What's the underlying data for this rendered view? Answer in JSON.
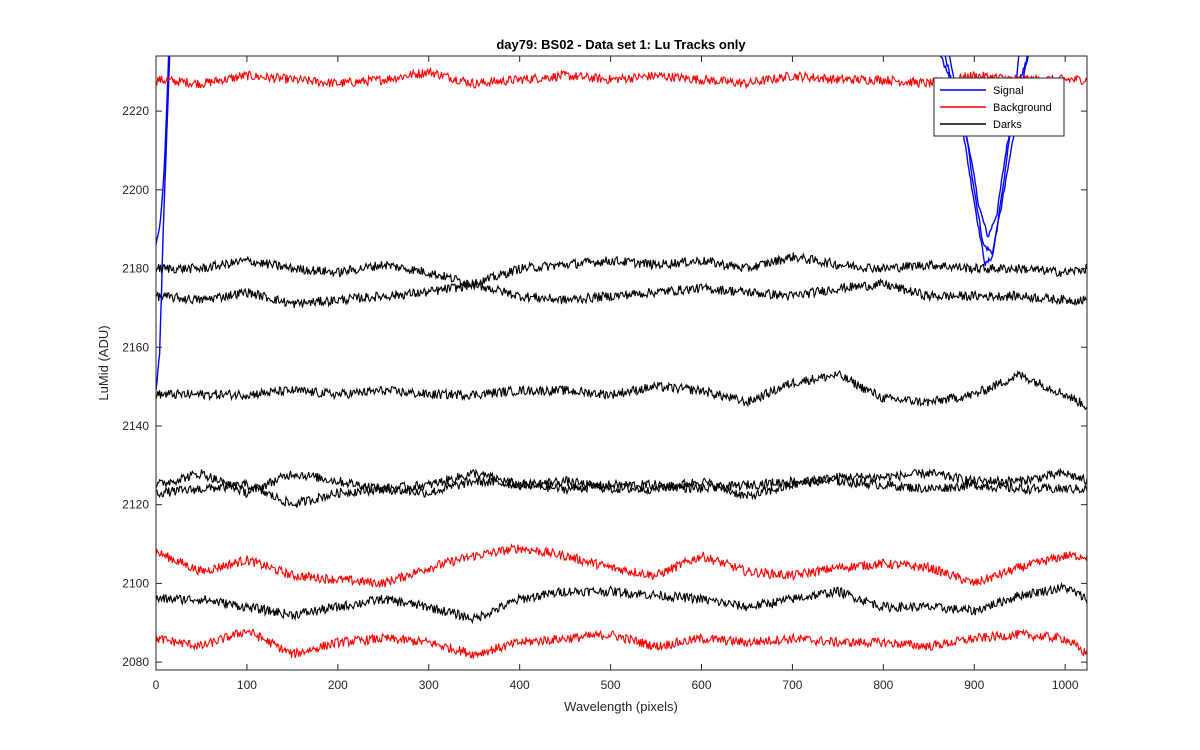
{
  "chart_data": {
    "type": "line",
    "title": "day79: BS02 - Data set 1: Lu Tracks only",
    "xlabel": "Wavelength (pixels)",
    "ylabel": "LuMid (ADU)",
    "xlim": [
      0,
      1024
    ],
    "ylim": [
      2078,
      2234
    ],
    "xticks": [
      0,
      100,
      200,
      300,
      400,
      500,
      600,
      700,
      800,
      900,
      1000
    ],
    "yticks": [
      2080,
      2100,
      2120,
      2140,
      2160,
      2180,
      2200,
      2220
    ],
    "grid": false,
    "legend_position": "top-right",
    "legend": [
      {
        "label": "Signal",
        "color": "#0000ff"
      },
      {
        "label": "Background",
        "color": "#ff0000"
      },
      {
        "label": "Darks",
        "color": "#000000"
      }
    ],
    "series": [
      {
        "group": "Signal",
        "color": "#0000ff",
        "x": [
          0,
          4,
          8,
          12,
          16,
          20
        ],
        "y": [
          2149,
          2158,
          2190,
          2215,
          2240,
          2260
        ]
      },
      {
        "group": "Signal",
        "color": "#0000ff",
        "x": [
          0,
          5,
          9,
          13,
          17
        ],
        "y": [
          2186,
          2192,
          2205,
          2228,
          2255
        ]
      },
      {
        "group": "Signal",
        "color": "#0000ff",
        "x": [
          820,
          860,
          880,
          895,
          905,
          915,
          925,
          935,
          950,
          970,
          985
        ],
        "y": [
          2260,
          2236,
          2224,
          2210,
          2196,
          2188,
          2194,
          2210,
          2228,
          2240,
          2260
        ]
      },
      {
        "group": "Signal",
        "color": "#0000ff",
        "x": [
          840,
          870,
          890,
          900,
          910,
          920,
          930,
          945,
          960,
          975
        ],
        "y": [
          2260,
          2232,
          2216,
          2200,
          2186,
          2184,
          2196,
          2216,
          2236,
          2260
        ]
      },
      {
        "group": "Signal",
        "color": "#0000ff",
        "x": [
          850,
          880,
          895,
          905,
          912,
          920,
          930,
          945,
          960
        ],
        "y": [
          2260,
          2226,
          2204,
          2190,
          2181,
          2183,
          2198,
          2224,
          2260
        ]
      },
      {
        "group": "Background",
        "color": "#ff0000",
        "x": [
          0,
          50,
          100,
          150,
          200,
          250,
          300,
          350,
          400,
          450,
          500,
          550,
          600,
          650,
          700,
          750,
          800,
          850,
          900,
          950,
          1000,
          1024
        ],
        "y": [
          2228,
          2227,
          2229,
          2228,
          2227,
          2228,
          2230,
          2227,
          2228,
          2229,
          2228,
          2229,
          2228,
          2227,
          2229,
          2228,
          2228,
          2227,
          2229,
          2228,
          2228,
          2228
        ]
      },
      {
        "group": "Background",
        "color": "#ff0000",
        "x": [
          0,
          50,
          100,
          150,
          200,
          250,
          300,
          350,
          400,
          450,
          500,
          550,
          600,
          650,
          700,
          750,
          800,
          850,
          900,
          950,
          1000,
          1024
        ],
        "y": [
          2108,
          2103,
          2106,
          2102,
          2101,
          2100,
          2104,
          2107,
          2109,
          2107,
          2104,
          2102,
          2107,
          2103,
          2102,
          2104,
          2105,
          2104,
          2100,
          2104,
          2107,
          2107
        ]
      },
      {
        "group": "Background",
        "color": "#ff0000",
        "x": [
          0,
          50,
          100,
          150,
          200,
          250,
          300,
          350,
          400,
          450,
          500,
          550,
          600,
          650,
          700,
          750,
          800,
          850,
          900,
          950,
          1000,
          1024
        ],
        "y": [
          2086,
          2084,
          2088,
          2082,
          2085,
          2086,
          2085,
          2082,
          2085,
          2086,
          2087,
          2084,
          2086,
          2085,
          2086,
          2085,
          2085,
          2084,
          2086,
          2087,
          2086,
          2082
        ]
      },
      {
        "group": "Darks",
        "color": "#000000",
        "x": [
          0,
          50,
          100,
          150,
          200,
          250,
          300,
          350,
          400,
          450,
          500,
          550,
          600,
          650,
          700,
          750,
          800,
          850,
          900,
          950,
          1000,
          1024
        ],
        "y": [
          2180,
          2180,
          2182,
          2180,
          2179,
          2181,
          2179,
          2176,
          2180,
          2181,
          2182,
          2181,
          2182,
          2180,
          2183,
          2181,
          2180,
          2181,
          2180,
          2180,
          2179,
          2180
        ]
      },
      {
        "group": "Darks",
        "color": "#000000",
        "x": [
          0,
          50,
          100,
          150,
          200,
          250,
          300,
          350,
          400,
          450,
          500,
          550,
          600,
          650,
          700,
          750,
          800,
          850,
          900,
          950,
          1000,
          1024
        ],
        "y": [
          2173,
          2172,
          2174,
          2171,
          2172,
          2173,
          2174,
          2176,
          2173,
          2172,
          2173,
          2174,
          2175,
          2174,
          2173,
          2175,
          2176,
          2173,
          2173,
          2173,
          2172,
          2172
        ]
      },
      {
        "group": "Darks",
        "color": "#000000",
        "x": [
          0,
          50,
          100,
          150,
          200,
          250,
          300,
          350,
          400,
          450,
          500,
          550,
          600,
          650,
          700,
          750,
          800,
          850,
          900,
          950,
          1000,
          1024
        ],
        "y": [
          2148,
          2148,
          2148,
          2149,
          2148,
          2149,
          2148,
          2148,
          2149,
          2149,
          2148,
          2150,
          2149,
          2146,
          2151,
          2153,
          2147,
          2146,
          2148,
          2153,
          2148,
          2145
        ]
      },
      {
        "group": "Darks",
        "color": "#000000",
        "x": [
          0,
          50,
          100,
          150,
          200,
          250,
          300,
          350,
          400,
          450,
          500,
          550,
          600,
          650,
          700,
          750,
          800,
          850,
          900,
          950,
          1000,
          1024
        ],
        "y": [
          2125,
          2128,
          2123,
          2128,
          2126,
          2124,
          2123,
          2126,
          2125,
          2126,
          2124,
          2124,
          2126,
          2122,
          2125,
          2127,
          2127,
          2128,
          2126,
          2126,
          2128,
          2126
        ]
      },
      {
        "group": "Darks",
        "color": "#000000",
        "x": [
          0,
          50,
          100,
          150,
          200,
          250,
          300,
          350,
          400,
          450,
          500,
          550,
          600,
          650,
          700,
          750,
          800,
          850,
          900,
          950,
          1000,
          1024
        ],
        "y": [
          2123,
          2124,
          2125,
          2120,
          2123,
          2124,
          2125,
          2128,
          2125,
          2124,
          2125,
          2125,
          2124,
          2125,
          2126,
          2126,
          2125,
          2124,
          2125,
          2124,
          2124,
          2124
        ]
      },
      {
        "group": "Darks",
        "color": "#000000",
        "x": [
          0,
          50,
          100,
          150,
          200,
          250,
          300,
          350,
          400,
          450,
          500,
          550,
          600,
          650,
          700,
          750,
          800,
          850,
          900,
          950,
          1000,
          1024
        ],
        "y": [
          2096,
          2096,
          2094,
          2092,
          2094,
          2096,
          2094,
          2091,
          2096,
          2098,
          2098,
          2097,
          2096,
          2094,
          2096,
          2098,
          2094,
          2094,
          2093,
          2097,
          2099,
          2096
        ]
      }
    ]
  }
}
